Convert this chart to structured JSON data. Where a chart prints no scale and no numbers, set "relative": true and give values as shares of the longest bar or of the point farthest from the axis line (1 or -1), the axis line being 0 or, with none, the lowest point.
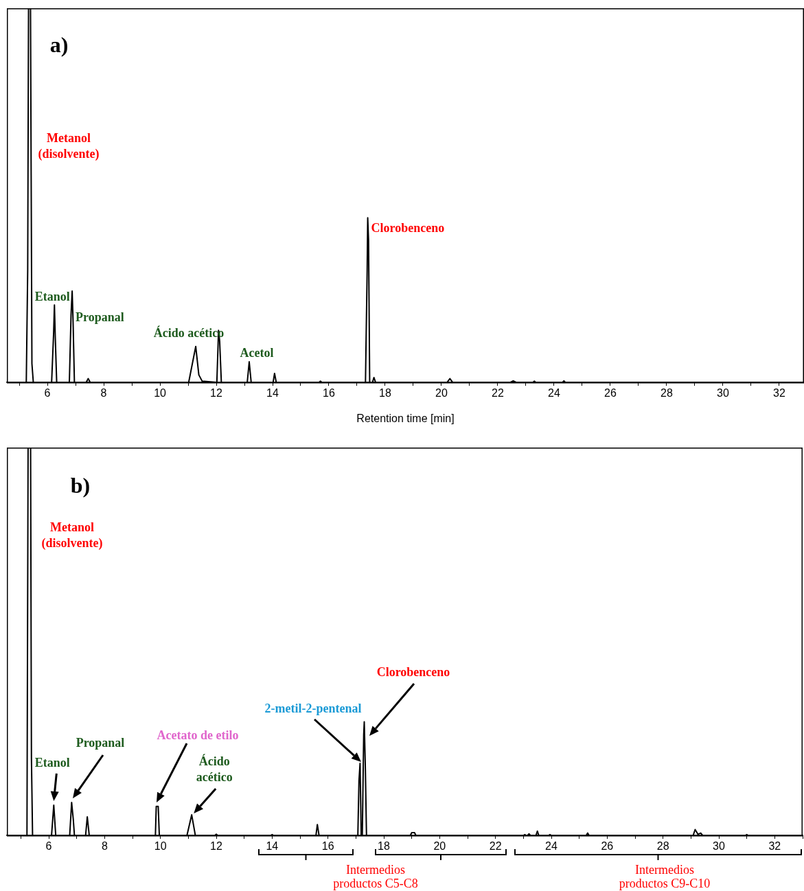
{
  "chart_data": [
    {
      "type": "line",
      "relative": true,
      "marker": "none",
      "xlabel": "Retention time [min]",
      "xlim": [
        4.56,
        32.88
      ],
      "xticks": [
        {
          "value": 5,
          "label": null
        },
        6,
        {
          "value": 7,
          "label": null
        },
        8,
        {
          "value": 9,
          "label": null
        },
        10,
        {
          "value": 11,
          "label": null
        },
        12,
        {
          "value": 13,
          "label": null
        },
        14,
        {
          "value": 15,
          "label": null
        },
        16,
        {
          "value": 17,
          "label": null
        },
        18,
        {
          "value": 19,
          "label": null
        },
        20,
        {
          "value": 21,
          "label": null
        },
        22,
        {
          "value": 23,
          "label": null
        },
        24,
        {
          "value": 25,
          "label": null
        },
        26,
        {
          "value": 27,
          "label": null
        },
        28,
        {
          "value": 29,
          "label": null
        },
        30,
        {
          "value": 31,
          "label": null
        },
        32
      ],
      "x": [
        4.9,
        5.25,
        5.3,
        5.33,
        5.4,
        5.45,
        5.5,
        6.15,
        6.22,
        6.25,
        6.28,
        6.33,
        6.78,
        6.84,
        6.88,
        6.91,
        6.96,
        7.38,
        7.45,
        7.52,
        11.02,
        11.27,
        11.38,
        11.5,
        12.02,
        12.08,
        12.12,
        12.18,
        13.1,
        13.17,
        13.24,
        14.02,
        14.07,
        14.13,
        15.65,
        15.7,
        15.75,
        17.3,
        17.36,
        17.38,
        17.41,
        17.45,
        17.55,
        17.6,
        17.66,
        20.2,
        20.3,
        20.4,
        22.45,
        22.55,
        22.65,
        23.25,
        23.3,
        23.35,
        24.3,
        24.35,
        24.4,
        32.85
      ],
      "series": [
        {
          "color": "#000000",
          "values": [
            0,
            0,
            0.3,
            1,
            1,
            0.05,
            0,
            0,
            0.13,
            0.207,
            0.12,
            0,
            0,
            0.18,
            0.244,
            0.17,
            0,
            0,
            0.01,
            0,
            0,
            0.096,
            0.02,
            0.003,
            0,
            0.139,
            0.11,
            0,
            0,
            0.055,
            0,
            0,
            0.024,
            0,
            0,
            0.003,
            0,
            0,
            0.3,
            0.44,
            0.38,
            0,
            0,
            0.013,
            0,
            0,
            0.01,
            0,
            0,
            0.004,
            0,
            0,
            0.003,
            0,
            0,
            0.004,
            0,
            0
          ]
        }
      ],
      "annotations": [
        "a)",
        "Metanol\n(disolvente)",
        {
          "text": "Etanol",
          "x": 6.25,
          "y": 0.207
        },
        {
          "text": "Propanal",
          "x": 6.88,
          "y": 0.244
        },
        {
          "text": "Ácido acético",
          "x": 11.27,
          "y": 0.096
        },
        {
          "text": "Acetol",
          "x": 13.17,
          "y": 0.055
        },
        {
          "text": "Clorobenceno",
          "x": 17.38,
          "y": 0.44
        }
      ]
    },
    {
      "type": "line",
      "relative": true,
      "marker": "none",
      "xlim": [
        4.5,
        33
      ],
      "xticks": [
        {
          "value": 5,
          "label": null
        },
        6,
        {
          "value": 7,
          "label": null
        },
        8,
        {
          "value": 9,
          "label": null
        },
        10,
        {
          "value": 11,
          "label": null
        },
        12,
        {
          "value": 13,
          "label": null
        },
        14,
        {
          "value": 15,
          "label": null
        },
        16,
        {
          "value": 17,
          "label": null
        },
        18,
        {
          "value": 19,
          "label": null
        },
        20,
        {
          "value": 21,
          "label": null
        },
        22,
        {
          "value": 23,
          "label": null
        },
        24,
        {
          "value": 25,
          "label": null
        },
        26,
        {
          "value": 27,
          "label": null
        },
        28,
        {
          "value": 29,
          "label": null
        },
        30,
        {
          "value": 31,
          "label": null
        },
        32,
        {
          "value": 33,
          "label": null
        }
      ],
      "x": [
        4.55,
        5.22,
        5.26,
        5.35,
        5.38,
        5.42,
        6.1,
        6.18,
        6.25,
        6.75,
        6.82,
        6.88,
        6.92,
        7.32,
        7.38,
        7.45,
        9.82,
        9.85,
        9.92,
        9.96,
        10.95,
        11.12,
        11.25,
        11.95,
        12.0,
        12.05,
        13.95,
        14.0,
        14.05,
        15.57,
        15.62,
        15.68,
        17.07,
        17.11,
        17.15,
        17.19,
        17.23,
        17.28,
        17.3,
        17.34,
        17.38,
        18.95,
        19.0,
        19.1,
        19.15,
        23.0,
        23.05,
        23.1,
        23.15,
        23.2,
        23.25,
        23.45,
        23.5,
        23.55,
        23.9,
        23.95,
        24.0,
        25.25,
        25.3,
        25.35,
        29.08,
        29.15,
        29.25,
        29.35,
        29.42,
        30.95,
        31.0,
        31.05,
        33.0
      ],
      "series": [
        {
          "color": "#000000",
          "values": [
            0,
            0,
            1,
            1,
            0.2,
            0,
            0,
            0.078,
            0,
            0,
            0.085,
            0.04,
            0,
            0,
            0.048,
            0,
            0,
            0.075,
            0.075,
            0,
            0,
            0.053,
            0,
            0,
            0.003,
            0,
            0,
            0.002,
            0,
            0,
            0.028,
            0,
            0,
            0.14,
            0.186,
            0,
            0,
            0.26,
            0.293,
            0.17,
            0,
            0,
            0.007,
            0.007,
            0,
            0,
            0.002,
            0,
            0,
            0.004,
            0,
            0,
            0.011,
            0,
            0,
            0.002,
            0,
            0,
            0.006,
            0,
            0,
            0.015,
            0.003,
            0.006,
            0,
            0,
            0.002,
            0,
            0
          ]
        }
      ],
      "annotations": [
        "b)",
        "Metanol\n(disolvente)",
        {
          "text": "Etanol",
          "x": 6.18,
          "y": 0.078
        },
        "Propanal",
        "Acetato de etilo",
        {
          "text": "Ácido\nacético",
          "x": 11.12,
          "y": 0.053
        },
        "2-metil-2-pentenal",
        "Clorobenceno",
        "Intermedios\nproductos C5-C8",
        "Intermedios\nproductos C9-C10"
      ]
    }
  ]
}
